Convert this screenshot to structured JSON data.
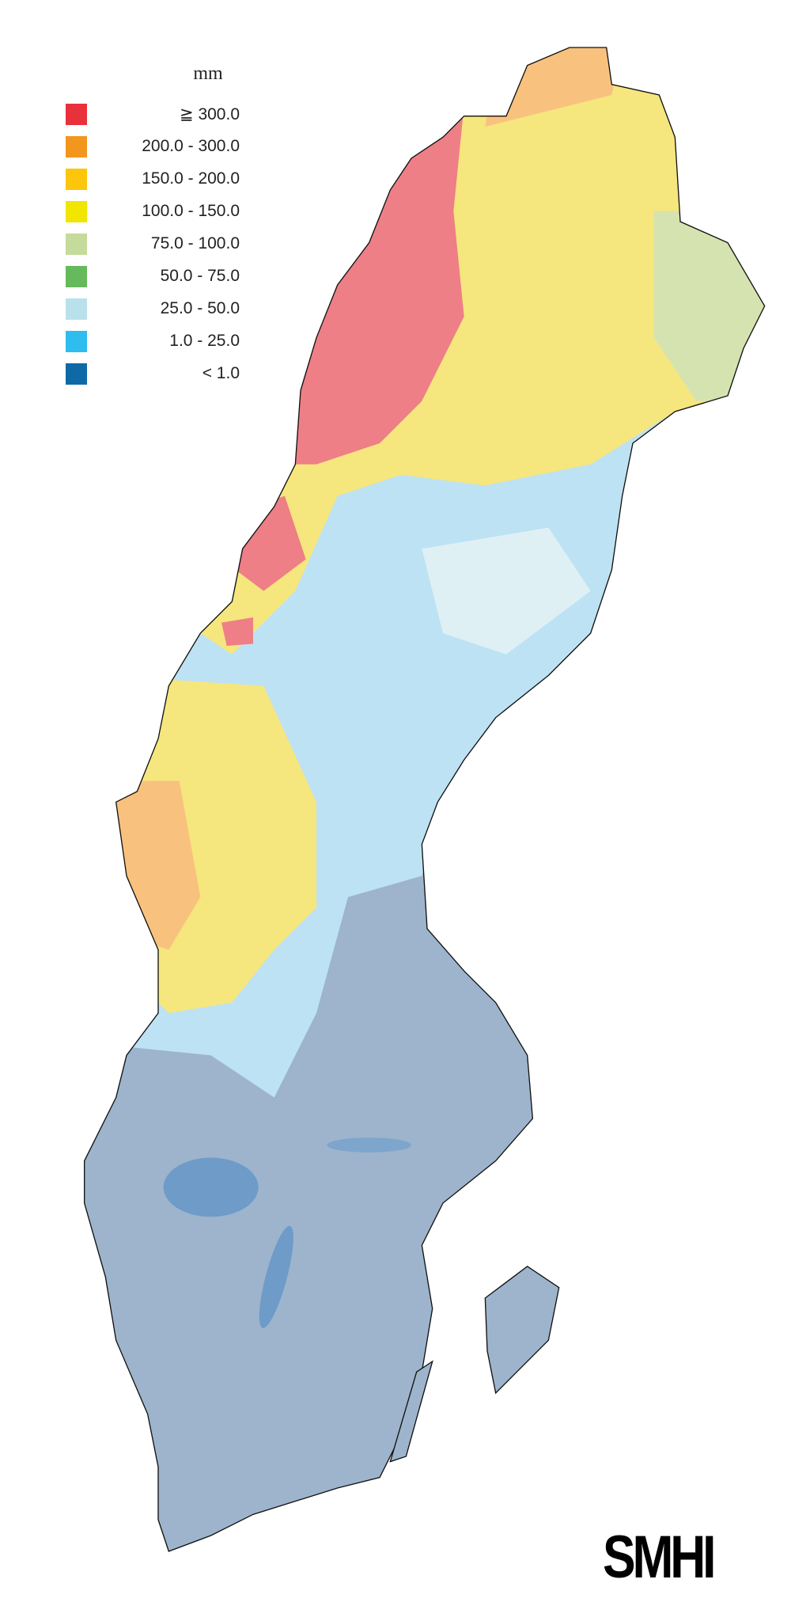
{
  "legend": {
    "unit": "mm",
    "items": [
      {
        "label": "≧ 300.0",
        "color": "#e8313a"
      },
      {
        "label": "200.0 - 300.0",
        "color": "#f3961e"
      },
      {
        "label": "150.0 - 200.0",
        "color": "#fdc50c"
      },
      {
        "label": "100.0 - 150.0",
        "color": "#f2e500"
      },
      {
        "label": "75.0 - 100.0",
        "color": "#c4db9c"
      },
      {
        "label": "50.0 - 75.0",
        "color": "#66b95c"
      },
      {
        "label": "25.0 - 50.0",
        "color": "#b9e1ec"
      },
      {
        "label": "1.0 - 25.0",
        "color": "#2ebdee"
      },
      {
        "label": "< 1.0",
        "color": "#0e6aa6"
      }
    ]
  },
  "logo": "SMHI",
  "map_colors": {
    "south": "#9db4cc",
    "middle": "#bde2f4",
    "pale": "#dff0f4",
    "yellow": "#f5e67e",
    "orange": "#f8c27e",
    "red": "#ee7f86",
    "palegreen": "#d5e3b0",
    "water": "#6e9bc8"
  }
}
